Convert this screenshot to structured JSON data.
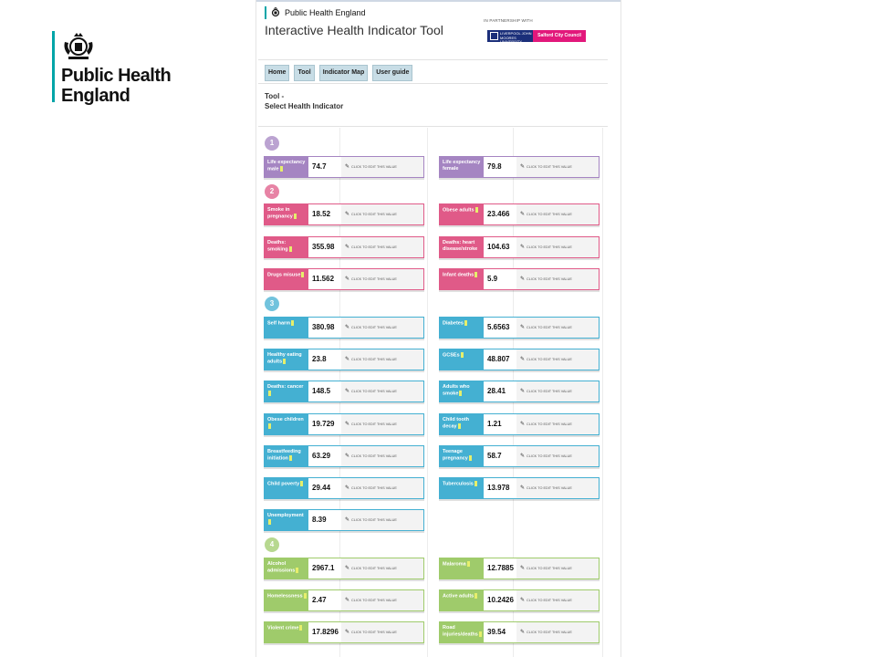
{
  "logo": {
    "name_line1": "Public Health",
    "name_line2": "England"
  },
  "header": {
    "brand": "Public Health England",
    "title": "Interactive Health Indicator Tool",
    "partner_label": "IN PARTNERSHIP WITH",
    "partner_ljmu": "LIVERPOOL JOHN MOORES UNIVERSITY",
    "partner_salford": "Salford City Council"
  },
  "nav": [
    "Home",
    "Tool",
    "Indicator Map",
    "User guide"
  ],
  "breadcrumb": {
    "line1": "Tool -",
    "line2": "Select Health Indicator"
  },
  "edit_label": "CLICK TO EDIT THIS VALUE",
  "colors": {
    "purple": "#a585c2",
    "pink": "#e05a88",
    "blue": "#44b0d2",
    "green": "#9fcb6b",
    "accent_teal": "#00a5a8"
  },
  "sections": [
    {
      "number": "1",
      "color": "purple"
    },
    {
      "number": "2",
      "color": "pink"
    },
    {
      "number": "3",
      "color": "blue"
    },
    {
      "number": "4",
      "color": "green"
    }
  ],
  "indicators": [
    {
      "label": "Life expectancy male",
      "value": "74.7",
      "section": 0,
      "info": true
    },
    {
      "label": "Life expectancy female",
      "value": "79.8",
      "section": 0,
      "info": false
    },
    {
      "label": "Smoke in pregnancy",
      "value": "18.52",
      "section": 1,
      "info": true
    },
    {
      "label": "Obese adults",
      "value": "23.466",
      "section": 1,
      "info": true
    },
    {
      "label": "Deaths: smoking",
      "value": "355.98",
      "section": 1,
      "info": true
    },
    {
      "label": "Deaths: heart disease/stroke",
      "value": "104.63",
      "section": 1,
      "info": false
    },
    {
      "label": "Drugs misuse",
      "value": "11.562",
      "section": 1,
      "info": true
    },
    {
      "label": "Infant deaths",
      "value": "5.9",
      "section": 1,
      "info": true
    },
    {
      "label": "Self harm",
      "value": "380.98",
      "section": 2,
      "info": true
    },
    {
      "label": "Diabetes",
      "value": "5.6563",
      "section": 2,
      "info": true
    },
    {
      "label": "Healthy eating adults",
      "value": "23.8",
      "section": 2,
      "info": true
    },
    {
      "label": "GCSEs",
      "value": "48.807",
      "section": 2,
      "info": true
    },
    {
      "label": "Deaths: cancer",
      "value": "148.5",
      "section": 2,
      "info": true
    },
    {
      "label": "Adults who smoke",
      "value": "28.41",
      "section": 2,
      "info": true
    },
    {
      "label": "Obese children",
      "value": "19.729",
      "section": 2,
      "info": true
    },
    {
      "label": "Child tooth decay",
      "value": "1.21",
      "section": 2,
      "info": true
    },
    {
      "label": "Breastfeeding initiation",
      "value": "63.29",
      "section": 2,
      "info": true
    },
    {
      "label": "Teenage pregnancy",
      "value": "58.7",
      "section": 2,
      "info": true
    },
    {
      "label": "Child poverty",
      "value": "29.44",
      "section": 2,
      "info": true
    },
    {
      "label": "Tuberculosis",
      "value": "13.978",
      "section": 2,
      "info": true
    },
    {
      "label": "Unemployment",
      "value": "8.39",
      "section": 2,
      "info": true
    },
    {
      "label": "Alcohol admissions",
      "value": "2967.1",
      "section": 3,
      "info": true
    },
    {
      "label": "Malaroma",
      "value": "12.7885",
      "section": 3,
      "info": true
    },
    {
      "label": "Homelessness",
      "value": "2.47",
      "section": 3,
      "info": true
    },
    {
      "label": "Active adults",
      "value": "10.2426",
      "section": 3,
      "info": true
    },
    {
      "label": "Violent crime",
      "value": "17.8296",
      "section": 3,
      "info": true
    },
    {
      "label": "Road injuries/deaths",
      "value": "39.54",
      "section": 3,
      "info": true
    }
  ]
}
